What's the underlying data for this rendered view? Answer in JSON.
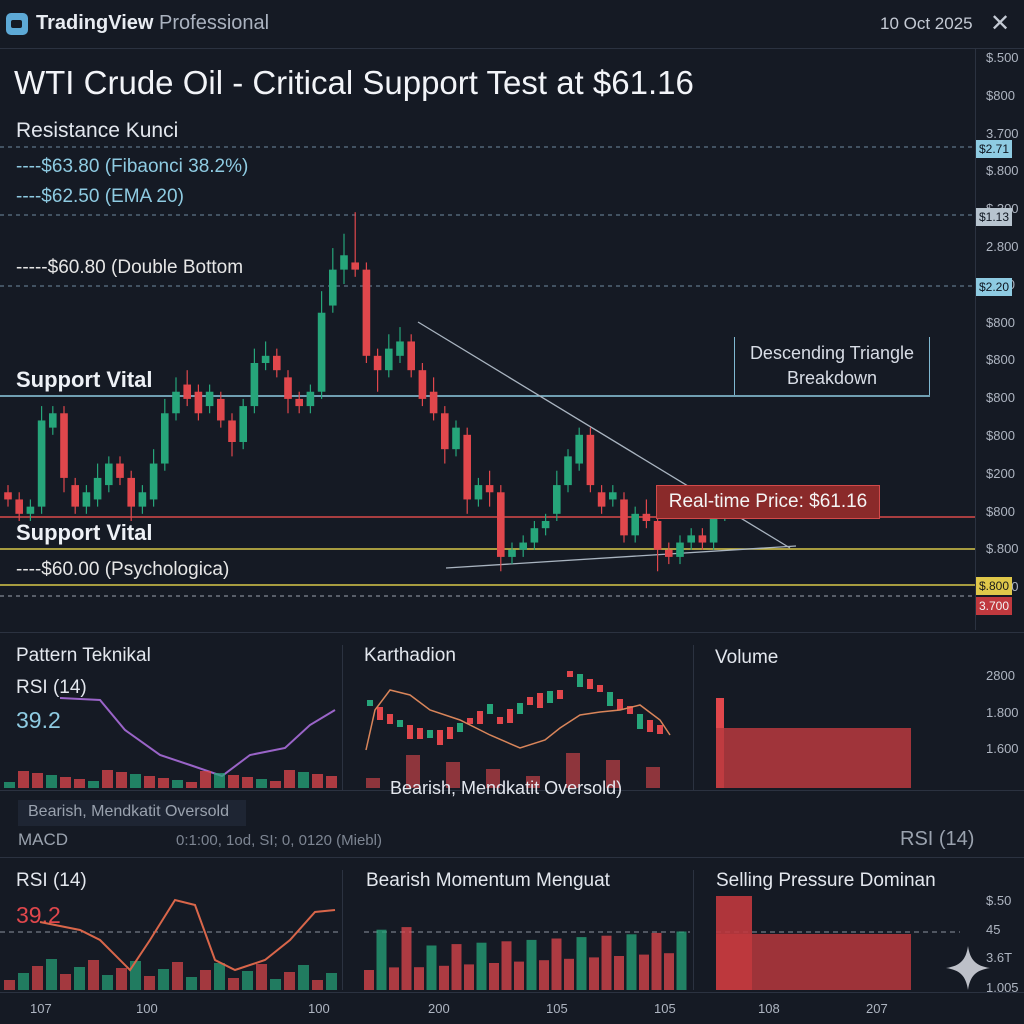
{
  "app": {
    "brand_name": "TradingView",
    "brand_tier": "Professional",
    "date": "10 Oct 2025",
    "close_icon": "close-icon"
  },
  "chart": {
    "title": "WTI Crude Oil - Critical Support Test at $61.16",
    "resistance_heading": "Resistance Kunci",
    "levels": {
      "fib": "----$63.80 (Fibaonci 38.2%)",
      "ema": "----$62.50 (EMA 20)",
      "double_bottom": "-----$60.80 (Double Bottom",
      "psych": "----$60.00 (Psychologica)"
    },
    "support_upper": "Support Vital",
    "support_lower": "Support Vital",
    "callout_line1": "Descending Triangle",
    "callout_line2": "Breakdown",
    "realtime_price": "Real-time Price: $61.16",
    "right_axis": [
      "$.500",
      "$800",
      "3.700",
      "$.800",
      "$.300",
      "2.800",
      "$800",
      "$800",
      "$800",
      "$800",
      "$800",
      "$200",
      "$800",
      "$.800",
      "1.850"
    ],
    "badges": {
      "b1": "$2.71",
      "b2": "$1.13",
      "b3": "$2.20",
      "b4": "$.800",
      "b5": "3.700"
    },
    "colors": {
      "up": "#26a57a",
      "down": "#e0474c",
      "support_line": "#8ecbe2",
      "realtime_line": "#d94a4a",
      "psych_line": "#d8c84a"
    }
  },
  "chart_data": {
    "type": "candlestick",
    "title": "WTI Crude Oil - Critical Support Test at $61.16",
    "candles": [
      [
        61.2,
        61.1,
        61.3,
        61.0
      ],
      [
        61.1,
        60.9,
        61.2,
        60.8
      ],
      [
        60.9,
        61.0,
        61.1,
        60.8
      ],
      [
        61.0,
        62.2,
        62.4,
        60.9
      ],
      [
        62.1,
        62.3,
        62.4,
        62.0
      ],
      [
        62.3,
        61.4,
        62.4,
        61.2
      ],
      [
        61.3,
        61.0,
        61.4,
        60.9
      ],
      [
        61.0,
        61.2,
        61.3,
        60.9
      ],
      [
        61.1,
        61.4,
        61.6,
        61.0
      ],
      [
        61.3,
        61.6,
        61.7,
        61.2
      ],
      [
        61.6,
        61.4,
        61.7,
        61.3
      ],
      [
        61.4,
        61.0,
        61.5,
        60.8
      ],
      [
        61.0,
        61.2,
        61.3,
        60.9
      ],
      [
        61.1,
        61.6,
        61.8,
        61.0
      ],
      [
        61.6,
        62.3,
        62.5,
        61.5
      ],
      [
        62.3,
        62.6,
        62.8,
        62.2
      ],
      [
        62.7,
        62.5,
        62.9,
        62.4
      ],
      [
        62.6,
        62.3,
        62.7,
        62.2
      ],
      [
        62.4,
        62.6,
        62.7,
        62.3
      ],
      [
        62.5,
        62.2,
        62.6,
        62.1
      ],
      [
        62.2,
        61.9,
        62.3,
        61.7
      ],
      [
        61.9,
        62.4,
        62.5,
        61.8
      ],
      [
        62.4,
        63.0,
        63.2,
        62.3
      ],
      [
        63.0,
        63.1,
        63.3,
        62.9
      ],
      [
        63.1,
        62.9,
        63.2,
        62.8
      ],
      [
        62.8,
        62.5,
        62.9,
        62.3
      ],
      [
        62.5,
        62.4,
        62.6,
        62.3
      ],
      [
        62.4,
        62.6,
        62.7,
        62.3
      ],
      [
        62.6,
        63.7,
        64.0,
        62.5
      ],
      [
        63.8,
        64.3,
        64.6,
        63.7
      ],
      [
        64.3,
        64.5,
        64.8,
        64.1
      ],
      [
        64.4,
        64.3,
        65.1,
        64.2
      ],
      [
        64.3,
        63.1,
        64.4,
        63.0
      ],
      [
        63.1,
        62.9,
        63.2,
        62.6
      ],
      [
        62.9,
        63.2,
        63.4,
        62.8
      ],
      [
        63.1,
        63.3,
        63.5,
        63.0
      ],
      [
        63.3,
        62.9,
        63.4,
        62.8
      ],
      [
        62.9,
        62.5,
        63.0,
        62.4
      ],
      [
        62.6,
        62.3,
        62.8,
        62.2
      ],
      [
        62.3,
        61.8,
        62.4,
        61.6
      ],
      [
        61.8,
        62.1,
        62.2,
        61.7
      ],
      [
        62.0,
        61.1,
        62.1,
        60.9
      ],
      [
        61.1,
        61.3,
        61.4,
        61.0
      ],
      [
        61.3,
        61.2,
        61.5,
        61.0
      ],
      [
        61.2,
        60.3,
        61.3,
        60.1
      ],
      [
        60.3,
        60.4,
        60.5,
        60.2
      ],
      [
        60.4,
        60.5,
        60.6,
        60.3
      ],
      [
        60.5,
        60.7,
        60.8,
        60.4
      ],
      [
        60.7,
        60.8,
        60.9,
        60.6
      ],
      [
        60.9,
        61.3,
        61.5,
        60.8
      ],
      [
        61.3,
        61.7,
        61.8,
        61.2
      ],
      [
        61.6,
        62.0,
        62.1,
        61.5
      ],
      [
        62.0,
        61.3,
        62.1,
        61.2
      ],
      [
        61.2,
        61.0,
        61.3,
        60.9
      ],
      [
        61.1,
        61.2,
        61.3,
        61.0
      ],
      [
        61.1,
        60.6,
        61.2,
        60.5
      ],
      [
        60.6,
        60.9,
        61.0,
        60.5
      ],
      [
        60.9,
        60.8,
        61.1,
        60.7
      ],
      [
        60.8,
        60.4,
        60.9,
        60.1
      ],
      [
        60.4,
        60.3,
        60.5,
        60.2
      ],
      [
        60.3,
        60.5,
        60.6,
        60.2
      ],
      [
        60.5,
        60.6,
        60.7,
        60.4
      ],
      [
        60.6,
        60.5,
        60.7,
        60.4
      ],
      [
        60.5,
        60.9,
        61.0,
        60.4
      ],
      [
        60.9,
        61.1,
        61.2,
        60.8
      ]
    ],
    "candle_fields": [
      "open",
      "close",
      "high",
      "low"
    ],
    "ylim": [
      59.7,
      65.2
    ]
  },
  "panels": {
    "p1": {
      "title": "Pattern Teknikal",
      "sub": "RSI (14)",
      "value": "39.2",
      "caption": "Bearish, Mendkatit Oversold"
    },
    "p2": {
      "title": "Karthadion",
      "caption": "Bearish, Mendkatit Oversold)"
    },
    "p3": {
      "title": "Volume"
    },
    "right_axis_mid": [
      "2800",
      "1.800",
      "1.600"
    ],
    "macd_label": "MACD",
    "macd_params": "0:1:00, 1od, SI; 0, 0120 (Miebl)",
    "rsi_right": "RSI (14)"
  },
  "bottom": {
    "p4": {
      "title": "RSI (14)",
      "value": "39.2"
    },
    "p5": {
      "title": "Bearish Momentum Menguat"
    },
    "p6": {
      "title": "Selling Pressure Dominan"
    },
    "x_axis": [
      "107",
      "100",
      "100",
      "200",
      "105",
      "105",
      "108",
      "207"
    ],
    "right_axis": [
      "$.50",
      "45",
      "3.6T",
      "1.005"
    ]
  }
}
